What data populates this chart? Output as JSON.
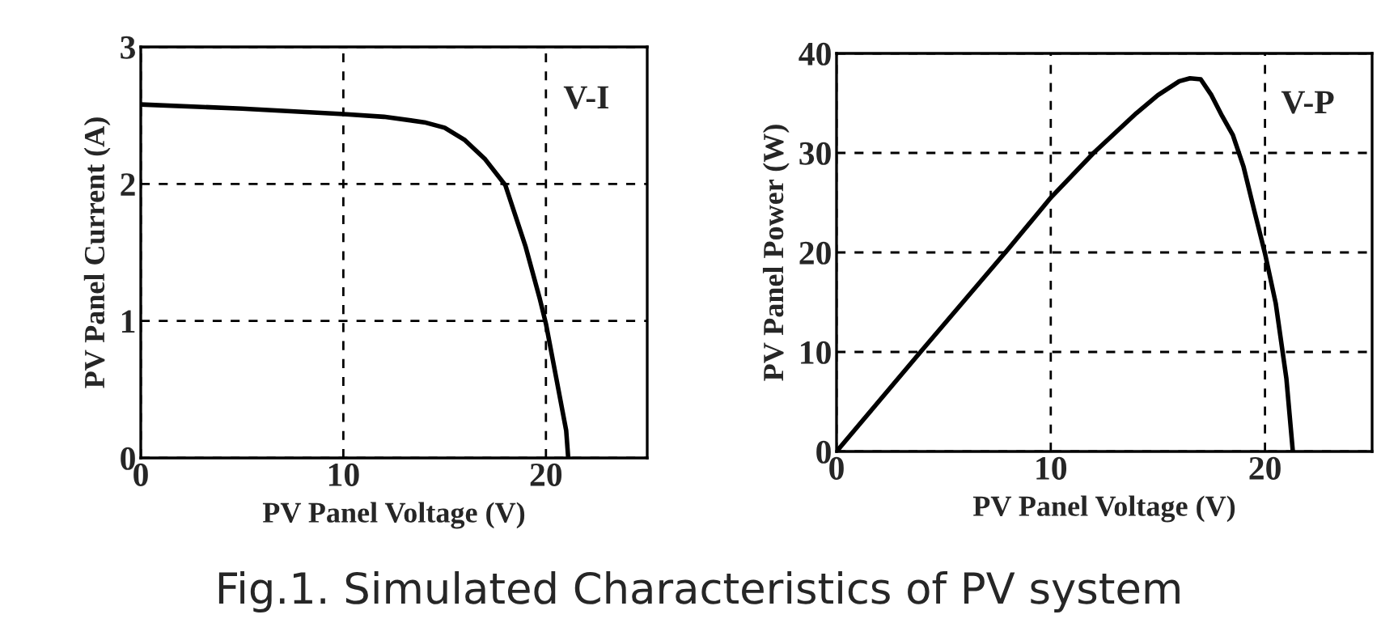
{
  "chart_data": [
    {
      "type": "line",
      "xlabel": "PV Panel Voltage (V)",
      "ylabel": "PV Panel Current (A)",
      "annotations": [
        "V-I",
        "Fig.1. Simulated Characteristics of PV system"
      ],
      "xlim": [
        0,
        25
      ],
      "xticks": [
        0,
        10,
        20
      ],
      "ylim": [
        0,
        3
      ],
      "yticks": [
        0,
        1,
        2,
        3
      ],
      "grid": true,
      "line_style": "solid",
      "series": [
        {
          "color": "#000000",
          "x": [
            0,
            5,
            10,
            12,
            14,
            15,
            16,
            17,
            18,
            19,
            19.7,
            20,
            20.5,
            21,
            21.1
          ],
          "values": [
            2.58,
            2.55,
            2.51,
            2.49,
            2.45,
            2.41,
            2.32,
            2.18,
            1.99,
            1.54,
            1.16,
            0.98,
            0.59,
            0.2,
            0
          ]
        }
      ]
    },
    {
      "type": "line",
      "xlabel": "PV Panel Voltage (V)",
      "ylabel": "PV Panel Power (W)",
      "annotations": [
        "V-P"
      ],
      "xlim": [
        0,
        25
      ],
      "xticks": [
        0,
        10,
        20
      ],
      "ylim": [
        0,
        40
      ],
      "yticks": [
        0,
        10,
        20,
        30,
        40
      ],
      "grid": true,
      "line_style": "solid",
      "series": [
        {
          "color": "#000000",
          "x": [
            0,
            4,
            8,
            10,
            12,
            14,
            15,
            16,
            16.5,
            17,
            17.5,
            18,
            18.5,
            19,
            19.5,
            20,
            20.5,
            21,
            21.3
          ],
          "values": [
            0,
            10.2,
            20.3,
            25.5,
            30,
            34,
            35.8,
            37.2,
            37.5,
            37.4,
            35.8,
            33.7,
            31.8,
            28.6,
            24.2,
            19.9,
            14.9,
            7.3,
            0
          ]
        }
      ]
    }
  ]
}
